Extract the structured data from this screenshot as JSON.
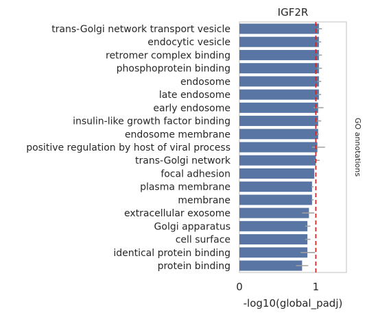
{
  "chart_data": {
    "type": "bar",
    "orientation": "horizontal",
    "title": "IGF2R",
    "xlabel": "-log10(global_padj)",
    "ylabel": "",
    "side_label": "GO annotations",
    "xlim": [
      0,
      1.4
    ],
    "xticks": [
      "0",
      "1"
    ],
    "grid": false,
    "reference_line": {
      "x": 1,
      "style": "dashed",
      "color": "#d62728"
    },
    "bar_color": "#5875a4",
    "errorbar_color": "#a0a0a0",
    "categories": [
      "trans-Golgi network transport vesicle",
      "endocytic vesicle",
      "retromer complex binding",
      "phosphoprotein binding",
      "endosome",
      "late endosome",
      "early endosome",
      "insulin-like growth factor binding",
      "endosome membrane",
      "positive regulation by host of viral process",
      "trans-Golgi network",
      "focal adhesion",
      "plasma membrane",
      "membrane",
      "extracellular exosome",
      "Golgi apparatus",
      "cell surface",
      "identical protein binding",
      "protein binding"
    ],
    "values": [
      1.04,
      1.04,
      1.04,
      1.04,
      1.04,
      1.04,
      1.03,
      1.03,
      1.03,
      1.02,
      1.0,
      0.98,
      0.95,
      0.95,
      0.91,
      0.89,
      0.89,
      0.89,
      0.82
    ],
    "error_low": [
      1.02,
      1.02,
      1.02,
      1.02,
      1.02,
      1.02,
      0.97,
      1.0,
      1.01,
      0.95,
      0.98,
      0.98,
      0.94,
      0.94,
      0.82,
      0.86,
      0.86,
      0.8,
      0.74
    ],
    "error_high": [
      1.08,
      1.07,
      1.08,
      1.08,
      1.07,
      1.07,
      1.1,
      1.07,
      1.04,
      1.12,
      1.05,
      0.98,
      0.97,
      0.97,
      0.98,
      0.93,
      0.93,
      0.99,
      0.9
    ]
  }
}
